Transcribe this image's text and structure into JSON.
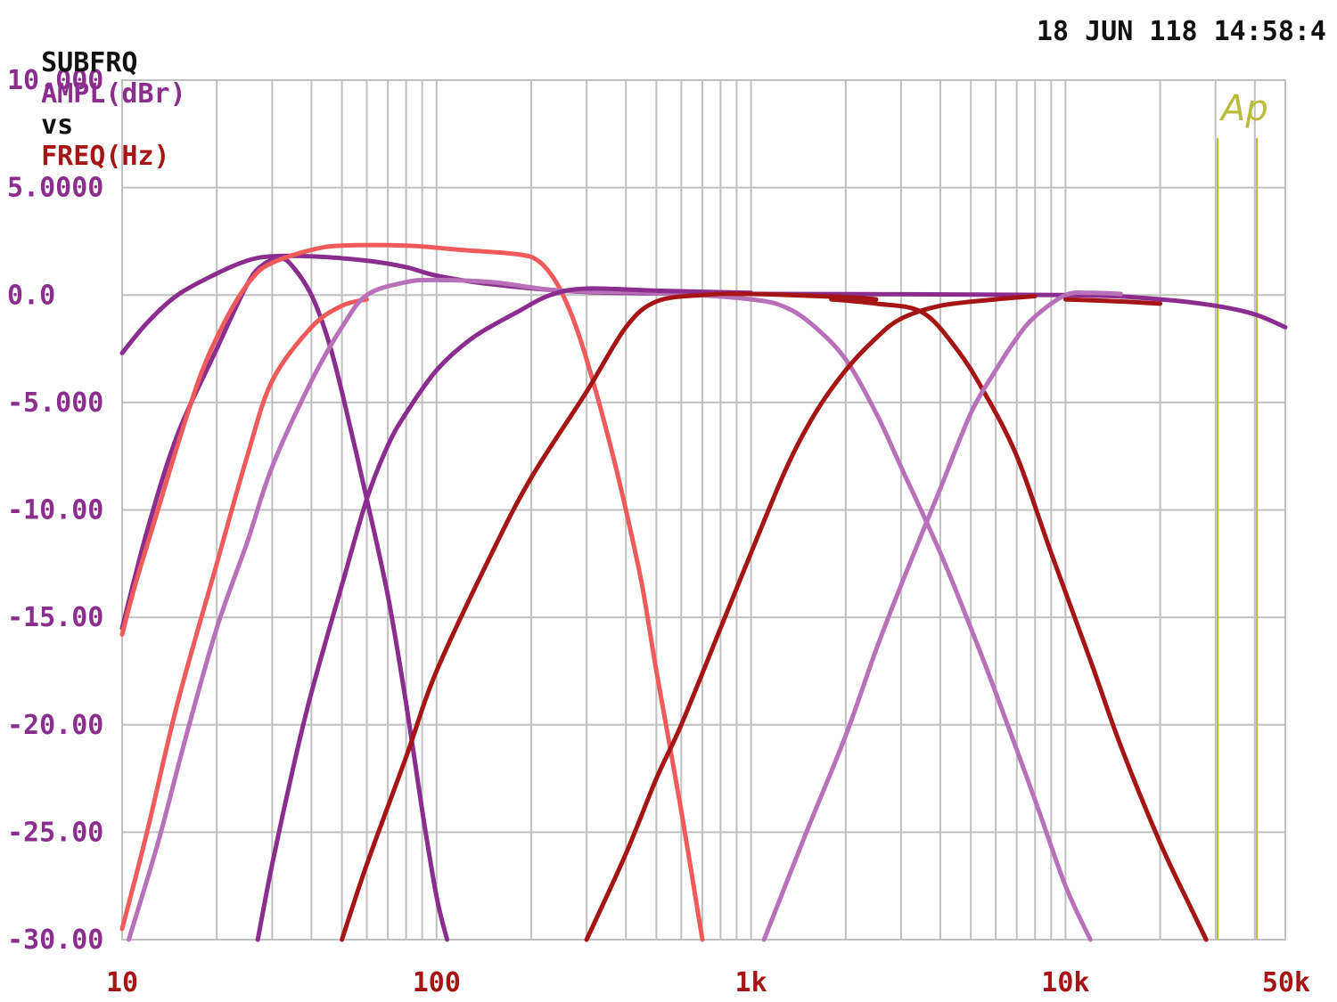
{
  "header": {
    "prefix": "SUBFRQ",
    "y_name": "AMPL(dBr)",
    "vs": "vs",
    "x_name": "FREQ(Hz)",
    "timestamp": "18 JUN 118 14:58:4"
  },
  "logo_text": "Ap",
  "colors": {
    "purple": "#8a2d8f",
    "dark_red": "#a51515",
    "salmon": "#ef5a5a",
    "orchid": "#b870b8",
    "grid": "#c0c0c0",
    "logo": "#b8bb3c",
    "header_text": "#111111"
  },
  "chart_data": {
    "type": "line",
    "x_scale": "log",
    "xlim": [
      10,
      50000
    ],
    "ylim": [
      -30,
      10
    ],
    "x_tick_labels": [
      {
        "value": 10,
        "label": "10"
      },
      {
        "value": 100,
        "label": "100"
      },
      {
        "value": 1000,
        "label": "1k"
      },
      {
        "value": 10000,
        "label": "10k"
      },
      {
        "value": 50000,
        "label": "50k"
      }
    ],
    "y_tick_labels": [
      {
        "value": 10,
        "label": "10.000"
      },
      {
        "value": 5,
        "label": "5.0000"
      },
      {
        "value": 0,
        "label": "0.0"
      },
      {
        "value": -5,
        "label": "-5.000"
      },
      {
        "value": -10,
        "label": "-10.00"
      },
      {
        "value": -15,
        "label": "-15.00"
      },
      {
        "value": -20,
        "label": "-20.00"
      },
      {
        "value": -25,
        "label": "-25.00"
      },
      {
        "value": -30,
        "label": "-30.00"
      }
    ],
    "grid": true,
    "series": [
      {
        "color": "purple",
        "points": [
          [
            10,
            -2.7
          ],
          [
            12,
            -1.3
          ],
          [
            15,
            0.0
          ],
          [
            20,
            1.0
          ],
          [
            25,
            1.6
          ],
          [
            30,
            1.8
          ],
          [
            40,
            1.8
          ],
          [
            60,
            1.6
          ],
          [
            80,
            1.3
          ],
          [
            100,
            0.9
          ],
          [
            150,
            0.5
          ],
          [
            250,
            0.2
          ],
          [
            400,
            0.1
          ],
          [
            1000,
            0.05
          ],
          [
            10000,
            0.0
          ],
          [
            20000,
            -0.2
          ],
          [
            30000,
            -0.5
          ],
          [
            40000,
            -0.9
          ],
          [
            50000,
            -1.5
          ]
        ]
      },
      {
        "color": "purple",
        "points": [
          [
            10,
            -15.5
          ],
          [
            12,
            -11
          ],
          [
            15,
            -6.5
          ],
          [
            20,
            -2.5
          ],
          [
            25,
            0.5
          ],
          [
            28,
            1.4
          ],
          [
            32,
            1.7
          ],
          [
            35,
            1.3
          ],
          [
            40,
            0
          ],
          [
            45,
            -2
          ],
          [
            50,
            -4.5
          ],
          [
            60,
            -9.5
          ],
          [
            70,
            -14
          ],
          [
            80,
            -19
          ],
          [
            90,
            -24
          ],
          [
            100,
            -28
          ],
          [
            108,
            -30
          ]
        ]
      },
      {
        "color": "salmon",
        "points": [
          [
            10,
            -15.8
          ],
          [
            11,
            -13.5
          ],
          [
            13,
            -10
          ],
          [
            15,
            -7
          ],
          [
            18,
            -3.5
          ],
          [
            22,
            -0.8
          ],
          [
            26,
            0.8
          ],
          [
            30,
            1.5
          ],
          [
            40,
            2.1
          ],
          [
            50,
            2.3
          ],
          [
            80,
            2.3
          ],
          [
            120,
            2.1
          ],
          [
            180,
            1.9
          ],
          [
            210,
            1.6
          ],
          [
            240,
            0.6
          ],
          [
            270,
            -1.0
          ],
          [
            300,
            -3.0
          ],
          [
            350,
            -6.5
          ],
          [
            400,
            -10
          ],
          [
            450,
            -13.5
          ],
          [
            500,
            -17.5
          ],
          [
            600,
            -24
          ],
          [
            700,
            -30
          ]
        ]
      },
      {
        "color": "salmon",
        "points": [
          [
            10,
            -29.5
          ],
          [
            12,
            -25
          ],
          [
            15,
            -19
          ],
          [
            20,
            -12.5
          ],
          [
            25,
            -7.5
          ],
          [
            30,
            -4
          ],
          [
            40,
            -1.5
          ],
          [
            50,
            -0.5
          ],
          [
            60,
            -0.2
          ]
        ]
      },
      {
        "color": "orchid",
        "points": [
          [
            10.5,
            -30
          ],
          [
            13,
            -25.5
          ],
          [
            16,
            -20.5
          ],
          [
            20,
            -15.5
          ],
          [
            25,
            -11.5
          ],
          [
            30,
            -8
          ],
          [
            40,
            -4
          ],
          [
            50,
            -1.5
          ],
          [
            60,
            0
          ],
          [
            80,
            0.6
          ],
          [
            100,
            0.7
          ],
          [
            150,
            0.6
          ],
          [
            250,
            0.2
          ],
          [
            500,
            0.1
          ],
          [
            1000,
            -0.2
          ],
          [
            1300,
            -0.6
          ],
          [
            1600,
            -1.5
          ],
          [
            2000,
            -3
          ],
          [
            2500,
            -5.5
          ],
          [
            3000,
            -8
          ],
          [
            4000,
            -12
          ],
          [
            5000,
            -15.5
          ],
          [
            6000,
            -18.5
          ],
          [
            8000,
            -23.5
          ],
          [
            10000,
            -27.5
          ],
          [
            12000,
            -30
          ]
        ]
      },
      {
        "color": "purple",
        "points": [
          [
            27,
            -30
          ],
          [
            30,
            -26.5
          ],
          [
            35,
            -22
          ],
          [
            40,
            -18.5
          ],
          [
            50,
            -13.5
          ],
          [
            60,
            -9.5
          ],
          [
            70,
            -7
          ],
          [
            80,
            -5.5
          ],
          [
            100,
            -3.5
          ],
          [
            130,
            -2
          ],
          [
            180,
            -0.8
          ],
          [
            230,
            0
          ],
          [
            300,
            0.3
          ],
          [
            500,
            0.2
          ],
          [
            1000,
            0.1
          ]
        ]
      },
      {
        "color": "dark_red",
        "points": [
          [
            50,
            -30
          ],
          [
            60,
            -26.5
          ],
          [
            80,
            -21.5
          ],
          [
            100,
            -17.5
          ],
          [
            150,
            -12
          ],
          [
            200,
            -8.5
          ],
          [
            300,
            -4.5
          ],
          [
            400,
            -1.5
          ],
          [
            500,
            -0.3
          ],
          [
            700,
            0
          ],
          [
            1000,
            0.05
          ],
          [
            2000,
            -0.1
          ],
          [
            2500,
            -0.2
          ]
        ]
      },
      {
        "color": "dark_red",
        "points": [
          [
            300,
            -30
          ],
          [
            400,
            -26
          ],
          [
            500,
            -22.5
          ],
          [
            600,
            -20
          ],
          [
            800,
            -15.5
          ],
          [
            1000,
            -12
          ],
          [
            1300,
            -8
          ],
          [
            1600,
            -5.5
          ],
          [
            2000,
            -3.5
          ],
          [
            2500,
            -2
          ],
          [
            3000,
            -1.1
          ],
          [
            4000,
            -0.5
          ],
          [
            6000,
            -0.2
          ],
          [
            8000,
            -0.05
          ]
        ]
      },
      {
        "color": "dark_red",
        "points": [
          [
            1800,
            -0.2
          ],
          [
            2500,
            -0.4
          ],
          [
            3500,
            -0.8
          ],
          [
            4500,
            -2.5
          ],
          [
            5500,
            -4.5
          ],
          [
            7000,
            -7.5
          ],
          [
            9000,
            -12
          ],
          [
            12000,
            -17
          ],
          [
            15000,
            -21
          ],
          [
            20000,
            -25.5
          ],
          [
            25000,
            -28.5
          ],
          [
            28000,
            -30
          ]
        ]
      },
      {
        "color": "orchid",
        "points": [
          [
            1100,
            -30
          ],
          [
            1500,
            -25
          ],
          [
            2000,
            -20.5
          ],
          [
            2500,
            -16.5
          ],
          [
            3000,
            -13.5
          ],
          [
            4000,
            -9
          ],
          [
            5000,
            -5.5
          ],
          [
            6000,
            -3.5
          ],
          [
            7000,
            -2
          ],
          [
            8000,
            -1
          ],
          [
            10000,
            0
          ],
          [
            12000,
            0.1
          ],
          [
            15000,
            0.05
          ]
        ]
      },
      {
        "color": "dark_red",
        "points": [
          [
            10000,
            -0.2
          ],
          [
            15000,
            -0.3
          ],
          [
            20000,
            -0.4
          ]
        ]
      }
    ]
  }
}
